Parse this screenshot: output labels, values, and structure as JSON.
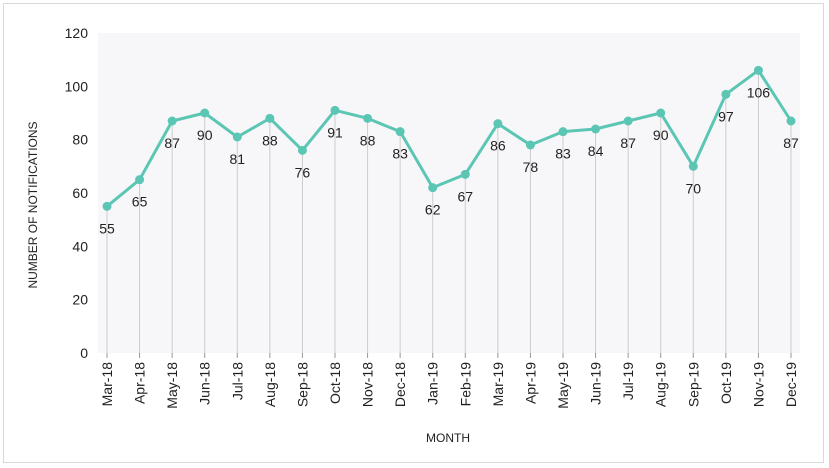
{
  "chart_data": {
    "type": "line",
    "categories": [
      "Mar-18",
      "Apr-18",
      "May-18",
      "Jun-18",
      "Jul-18",
      "Aug-18",
      "Sep-18",
      "Oct-18",
      "Nov-18",
      "Dec-18",
      "Jan-19",
      "Feb-19",
      "Mar-19",
      "Apr-19",
      "May-19",
      "Jun-19",
      "Jul-19",
      "Aug-19",
      "Sep-19",
      "Oct-19",
      "Nov-19",
      "Dec-19"
    ],
    "values": [
      55,
      65,
      87,
      90,
      81,
      88,
      76,
      91,
      88,
      83,
      62,
      67,
      86,
      78,
      83,
      84,
      87,
      90,
      70,
      97,
      106,
      87
    ],
    "xlabel": "MONTH",
    "ylabel": "NUMBER OF NOTIFICATIONS",
    "ylim": [
      0,
      120
    ],
    "yticks": [
      0,
      20,
      40,
      60,
      80,
      100,
      120
    ],
    "grid": false,
    "legend": "none",
    "colors": {
      "line": "#5cc6b4",
      "plot_background": "#f7f7fa",
      "drop_line": "#cccccc",
      "text": "#222222"
    }
  }
}
